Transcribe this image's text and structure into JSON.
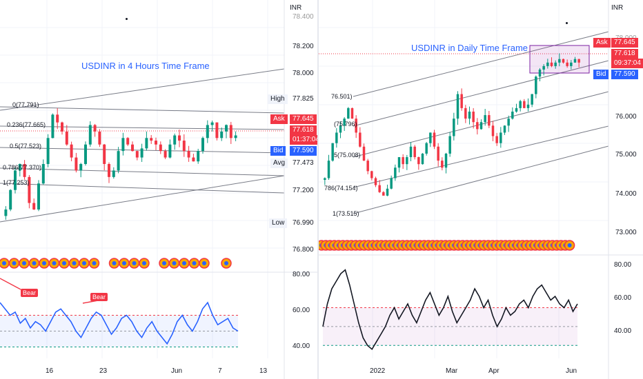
{
  "left": {
    "title": "USDINR in 4 Hours Time Frame",
    "unit": "INR",
    "axis_labels": [
      "78.400",
      "78.200",
      "78.000",
      "77.200",
      "76.800"
    ],
    "fib_labels": [
      "0(77.791)",
      "0.236(77.665)",
      "0.5(77.523)",
      "0.786(77.370)",
      "1(77.253)"
    ],
    "high": {
      "label": "High",
      "value": "77.825"
    },
    "ask": {
      "label": "Ask",
      "value": "77.645"
    },
    "last": {
      "price": "77.618",
      "countdown": "01:37:04"
    },
    "bid": {
      "label": "Bid",
      "value": "77.590"
    },
    "avg": {
      "label": "Avg",
      "value": "77.473"
    },
    "low": {
      "label": "Low",
      "value": "76.990"
    },
    "osc_axis": [
      "80.00",
      "60.00",
      "40.00"
    ],
    "bear_labels": [
      "Bear",
      "Bear"
    ],
    "x_ticks": [
      "16",
      "23",
      "Jun",
      "7",
      "13"
    ]
  },
  "right": {
    "title": "USDINR in Daily Time Frame",
    "unit": "INR",
    "axis_labels": [
      "78.000",
      "76.000",
      "75.000",
      "74.000",
      "73.000"
    ],
    "fib_labels": [
      "76.501)",
      "(75.796)",
      "5(75.008)",
      "786(74.154)",
      "1(73.515)"
    ],
    "ask": {
      "label": "Ask",
      "value": "77.645"
    },
    "last": {
      "price": "77.618",
      "countdown": "09:37:04"
    },
    "bid": {
      "label": "Bid",
      "value": "77.590"
    },
    "osc_axis": [
      "80.00",
      "60.00",
      "40.00"
    ],
    "x_ticks": [
      "2022",
      "Mar",
      "Apr",
      "Jun"
    ]
  },
  "colors": {
    "up": "#089981",
    "down": "#f23645",
    "accent": "#2962ff",
    "channel": "#787b86",
    "osc_left": "#2962ff",
    "osc_right": "#131722"
  },
  "chart_data": [
    {
      "type": "candlestick",
      "title": "USDINR in 4 Hours Time Frame",
      "ylabel": "INR",
      "ylim": [
        76.7,
        78.45
      ],
      "x_ticks": [
        "16",
        "23",
        "Jun",
        "7",
        "13"
      ],
      "fibonacci": {
        "0": 77.791,
        "0.236": 77.665,
        "0.5": 77.523,
        "0.786": 77.37,
        "1": 77.253
      },
      "stats": {
        "high": 77.825,
        "low": 76.99,
        "avg": 77.473,
        "last": 77.618,
        "ask": 77.645,
        "bid": 77.59
      },
      "series": [
        {
          "values": [
            77.05,
            77.2,
            77.35,
            77.4,
            77.3,
            77.1,
            77.05,
            77.25,
            77.4,
            77.6,
            77.78,
            77.72,
            77.65,
            77.55,
            77.45,
            77.35,
            77.4,
            77.55,
            77.7,
            77.65,
            77.55,
            77.4,
            77.3,
            77.35,
            77.5,
            77.6,
            77.55,
            77.5,
            77.45,
            77.52,
            77.6,
            77.58,
            77.55,
            77.5,
            77.45,
            77.55,
            77.62,
            77.58,
            77.5,
            77.45,
            77.42,
            77.5,
            77.6,
            77.7,
            77.72,
            77.6,
            77.65,
            77.7,
            77.6,
            77.62
          ]
        }
      ]
    },
    {
      "type": "line",
      "title": "",
      "ylim": [
        35,
        85
      ],
      "levels": [
        60,
        50,
        40
      ],
      "series": [
        {
          "values": [
            68,
            64,
            60,
            62,
            55,
            58,
            52,
            56,
            54,
            50,
            56,
            62,
            64,
            60,
            56,
            50,
            46,
            52,
            58,
            62,
            60,
            54,
            48,
            52,
            58,
            60,
            56,
            50,
            46,
            52,
            56,
            50,
            46,
            42,
            48,
            56,
            60,
            54,
            50,
            56,
            64,
            68,
            60,
            54,
            56,
            58,
            52,
            50
          ]
        }
      ]
    },
    {
      "type": "candlestick",
      "title": "USDINR in Daily Time Frame",
      "ylabel": "INR",
      "ylim": [
        72.5,
        78.6
      ],
      "x_ticks": [
        "2022",
        "Mar",
        "Apr",
        "Jun"
      ],
      "fibonacci": {
        "0.236": 76.501,
        "0.382": 75.796,
        "0.5": 75.008,
        "0.786": 74.154,
        "1": 73.515
      },
      "stats": {
        "last": 77.618,
        "ask": 77.645,
        "bid": 77.59
      },
      "series": [
        {
          "values": [
            74.3,
            74.8,
            75.3,
            75.6,
            75.8,
            76.0,
            76.3,
            76.0,
            75.6,
            75.2,
            74.8,
            74.5,
            74.3,
            74.1,
            73.9,
            73.8,
            74.0,
            74.3,
            74.6,
            74.9,
            74.7,
            74.9,
            75.2,
            74.9,
            74.7,
            75.0,
            75.3,
            75.6,
            75.2,
            74.8,
            74.6,
            75.0,
            75.5,
            76.0,
            76.7,
            76.3,
            76.0,
            76.2,
            75.9,
            75.7,
            75.9,
            76.1,
            75.8,
            75.5,
            75.3,
            75.6,
            75.8,
            76.0,
            76.2,
            76.3,
            76.5,
            76.3,
            76.4,
            76.7,
            77.2,
            77.4,
            77.5,
            77.6,
            77.5,
            77.6,
            77.7,
            77.6,
            77.5,
            77.6,
            77.7,
            77.6
          ]
        }
      ]
    },
    {
      "type": "line",
      "title": "",
      "ylim": [
        35,
        85
      ],
      "levels": [
        60,
        50,
        40
      ],
      "series": [
        {
          "values": [
            50,
            62,
            70,
            74,
            78,
            80,
            72,
            62,
            52,
            44,
            40,
            38,
            42,
            46,
            50,
            56,
            60,
            54,
            58,
            62,
            56,
            52,
            58,
            64,
            68,
            62,
            56,
            60,
            66,
            58,
            52,
            56,
            60,
            64,
            70,
            66,
            60,
            64,
            56,
            50,
            54,
            60,
            56,
            58,
            62,
            64,
            60,
            66,
            70,
            72,
            68,
            64,
            66,
            62,
            60,
            64,
            58,
            62
          ]
        }
      ]
    }
  ]
}
